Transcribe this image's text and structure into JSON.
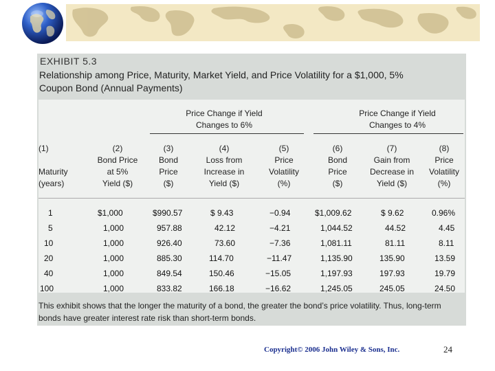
{
  "exhibit_label": "EXHIBIT 5.3",
  "title_lines": [
    "Relationship among Price, Maturity, Market Yield, and Price Volatility for a $1,000, 5%",
    "Coupon Bond (Annual Payments)"
  ],
  "group_headers": [
    [
      "Price Change if Yield",
      "Changes to 6%"
    ],
    [
      "Price Change if Yield",
      "Changes to 4%"
    ]
  ],
  "columns": [
    [
      "(1)",
      "",
      "Maturity",
      "(years)"
    ],
    [
      "(2)",
      "Bond Price",
      "at 5%",
      "Yield ($)"
    ],
    [
      "(3)",
      "Bond",
      "Price",
      "($)"
    ],
    [
      "(4)",
      "Loss from",
      "Increase in",
      "Yield ($)"
    ],
    [
      "(5)",
      "Price",
      "Volatility",
      "(%)"
    ],
    [
      "(6)",
      "Bond",
      "Price",
      "($)"
    ],
    [
      "(7)",
      "Gain from",
      "Decrease in",
      "Yield ($)"
    ],
    [
      "(8)",
      "Price",
      "Volatility",
      "(%)"
    ]
  ],
  "rows": [
    [
      "1",
      "$1,000",
      "$990.57",
      "$ 9.43",
      "−0.94",
      "$1,009.62",
      "$ 9.62",
      "0.96%"
    ],
    [
      "5",
      "1,000",
      "957.88",
      "42.12",
      "−4.21",
      "1,044.52",
      "44.52",
      "4.45"
    ],
    [
      "10",
      "1,000",
      "926.40",
      "73.60",
      "−7.36",
      "1,081.11",
      "81.11",
      "8.11"
    ],
    [
      "20",
      "1,000",
      "885.30",
      "114.70",
      "−11.47",
      "1,135.90",
      "135.90",
      "13.59"
    ],
    [
      "40",
      "1,000",
      "849.54",
      "150.46",
      "−15.05",
      "1,197.93",
      "197.93",
      "19.79"
    ],
    [
      "100",
      "1,000",
      "833.82",
      "166.18",
      "−16.62",
      "1,245.05",
      "245.05",
      "24.50"
    ]
  ],
  "note_lines": [
    "This exhibit shows that the longer the maturity of a bond, the greater the bond’s price volatility. Thus, long-term",
    "bonds have greater interest rate risk than short-term bonds."
  ],
  "footer": "Copyright© 2006 John Wiley & Sons, Inc.",
  "slide_number": "24",
  "colors": {
    "panel": "#d7dbd8",
    "table": "#eff1ef",
    "footer": "#1b2f8f",
    "map_band": "#f3e8c4"
  }
}
